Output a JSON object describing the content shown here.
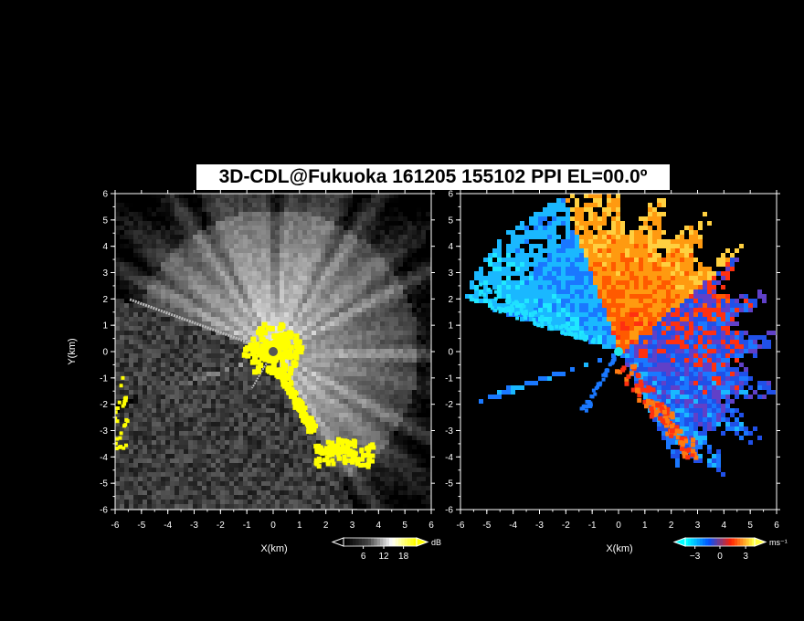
{
  "title": "3D-CDL@Fukuoka 161205 155102 PPI EL=00.0º",
  "chart_data": [
    {
      "type": "heatmap",
      "variable": "echo intensity",
      "xlabel": "X(km)",
      "ylabel": "Y(km)",
      "xlim": [
        -6,
        6
      ],
      "ylim": [
        -6,
        6
      ],
      "xticks": [
        -6,
        -5,
        -4,
        -3,
        -2,
        -1,
        0,
        1,
        2,
        3,
        4,
        5,
        6
      ],
      "yticks": [
        -6,
        -5,
        -4,
        -3,
        -2,
        -1,
        0,
        1,
        2,
        3,
        4,
        5,
        6
      ],
      "colorbar": {
        "unit": "dB",
        "ticks": [
          6,
          12,
          18
        ],
        "range": [
          0,
          22
        ],
        "colors": [
          "#000000",
          "#ffffff",
          "#ffff00"
        ]
      },
      "no_data_sectors_deg": [
        [
          160,
          198
        ],
        [
          198,
          297
        ]
      ],
      "beam_spokes_deg": [
        160,
        240
      ],
      "high_value_region": "yellow cluster around origin and along clear-sector edge at south-east"
    },
    {
      "type": "heatmap",
      "variable": "radial velocity",
      "xlabel": "X(km)",
      "ylabel": "",
      "xlim": [
        -6,
        6
      ],
      "ylim": [
        -6,
        6
      ],
      "xticks": [
        -6,
        -5,
        -4,
        -3,
        -2,
        -1,
        0,
        1,
        2,
        3,
        4,
        5,
        6
      ],
      "yticks": [
        -6,
        -5,
        -4,
        -3,
        -2,
        -1,
        0,
        1,
        2,
        3,
        4,
        5,
        6
      ],
      "colorbar": {
        "unit": "ms⁻¹",
        "ticks": [
          -3,
          0,
          3
        ],
        "range": [
          -4,
          4
        ],
        "colors": [
          "#00ffff",
          "#0050ff",
          "#ff2000",
          "#ffff40"
        ]
      },
      "pattern": "negative (blue) to the west, positive (orange/red) to the north and north-east"
    }
  ],
  "axes": {
    "x_label": "X(km)",
    "y_label": "Y(km)",
    "ticks": [
      "-6",
      "-5",
      "-4",
      "-3",
      "-2",
      "-1",
      "0",
      "1",
      "2",
      "3",
      "4",
      "5",
      "6"
    ]
  },
  "colorbars": {
    "left": {
      "unit": "dB",
      "labels": [
        "6",
        "12",
        "18"
      ]
    },
    "right": {
      "unit": "ms⁻¹",
      "labels": [
        "−3",
        "0",
        "3"
      ]
    }
  }
}
